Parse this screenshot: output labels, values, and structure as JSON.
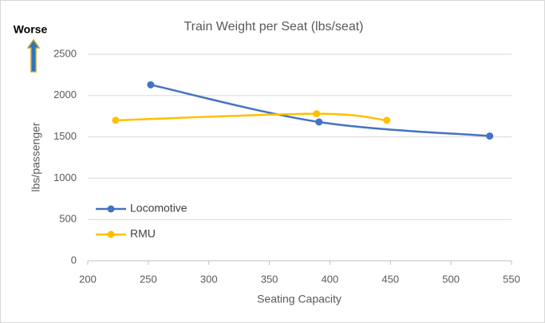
{
  "chart_data": {
    "type": "line",
    "smooth": true,
    "title": "Train Weight per Seat (lbs/seat)",
    "xlabel": "Seating Capacity",
    "ylabel": "lbs/passenger",
    "annotation": "Worse",
    "xlim": [
      200,
      550
    ],
    "xticks": [
      200,
      250,
      300,
      350,
      400,
      450,
      500,
      550
    ],
    "ylim": [
      0,
      2500
    ],
    "yticks": [
      0,
      500,
      1000,
      1500,
      2000,
      2500
    ],
    "grid": true,
    "legend": "left",
    "series": [
      {
        "name": "Locomotive",
        "color": "#4472c4",
        "x": [
          252,
          391,
          532
        ],
        "values": [
          2130,
          1680,
          1510
        ]
      },
      {
        "name": "RMU",
        "color": "#ffc000",
        "x": [
          223,
          389,
          447
        ],
        "values": [
          1700,
          1780,
          1700
        ]
      }
    ]
  }
}
